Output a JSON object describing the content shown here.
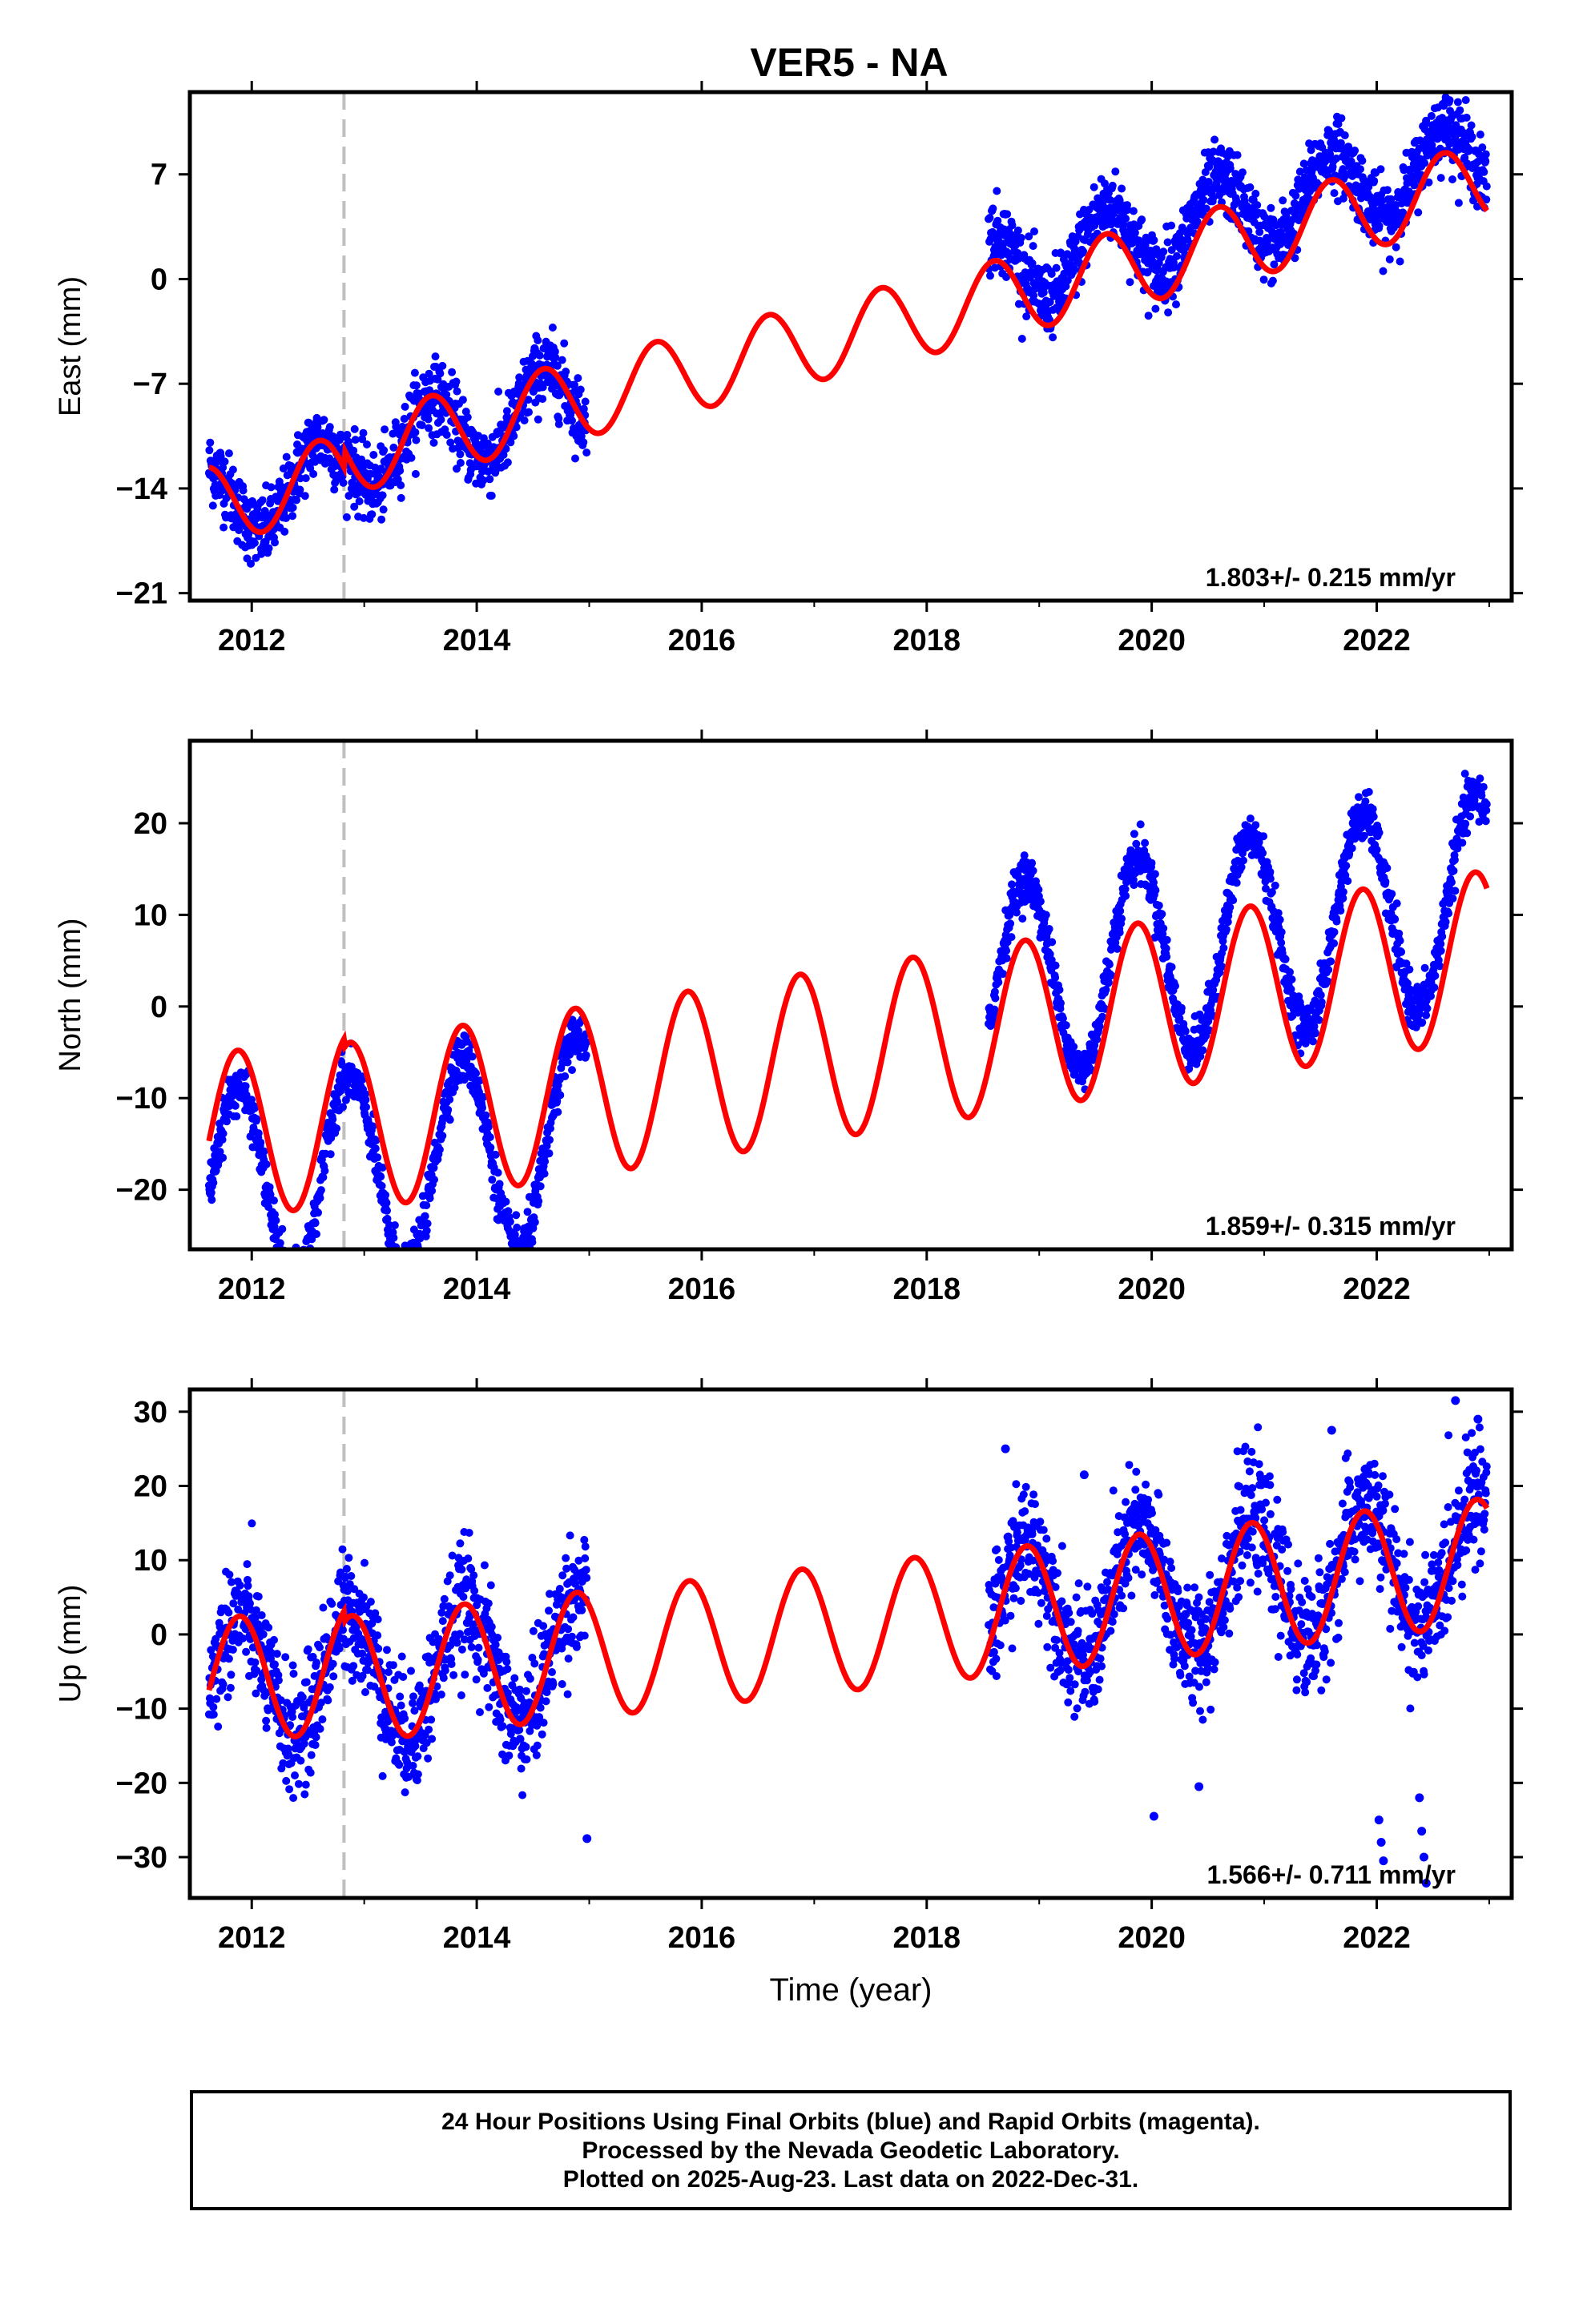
{
  "title": "VER5 - NA",
  "colors": {
    "final_orbits": "#0000ff",
    "rapid_orbits": "#ff00ff",
    "model": "#ff0000",
    "step_line": "#c0c0c0"
  },
  "chart_data": [
    {
      "type": "scatter",
      "panel": "east",
      "ylabel": "East (mm)",
      "xlabel": "",
      "xlim": [
        2011.45,
        2023.2
      ],
      "ylim": [
        -21.5,
        12.5
      ],
      "xticks": [
        2012,
        2014,
        2016,
        2018,
        2020,
        2022
      ],
      "yticks": [
        -21,
        -14,
        -7,
        0,
        7
      ],
      "equipment_change_x": 2012.82,
      "rate_label": "1.803+/- 0.215 mm/yr",
      "model": {
        "velocity": 1.803,
        "offset": -15.2,
        "annual_amplitude": 2.6,
        "phase": 1.6,
        "step_at": 2012.82,
        "step": 1.2
      },
      "observations": {
        "segments": [
          [
            2011.62,
            2014.98
          ],
          [
            2018.55,
            2022.98
          ]
        ],
        "scatter_mm": 1.2,
        "segment_offsets": [
          0.0,
          1.8
        ],
        "note_points": []
      }
    },
    {
      "type": "scatter",
      "panel": "north",
      "ylabel": "North (mm)",
      "xlabel": "",
      "xlim": [
        2011.45,
        2023.2
      ],
      "ylim": [
        -26.5,
        29
      ],
      "xticks": [
        2012,
        2014,
        2016,
        2018,
        2020,
        2022
      ],
      "yticks": [
        -20,
        -10,
        0,
        10,
        20
      ],
      "equipment_change_x": 2012.82,
      "rate_label": "1.859+/- 0.315 mm/yr",
      "model": {
        "velocity": 1.859,
        "offset": -14.5,
        "annual_amplitude": 9.2,
        "phase": -0.15,
        "step_at": 2012.82,
        "step": -1.0
      },
      "observations": {
        "segments": [
          [
            2011.62,
            2014.98
          ],
          [
            2018.55,
            2022.98
          ]
        ],
        "scatter_mm": 1.3,
        "segment_offsets": [
          -6.0,
          2.5
        ],
        "note_points": []
      }
    },
    {
      "type": "scatter",
      "panel": "up",
      "ylabel": "Up (mm)",
      "xlabel": "Time (year)",
      "xlim": [
        2011.45,
        2023.2
      ],
      "ylim": [
        -35.5,
        33
      ],
      "xticks": [
        2012,
        2014,
        2016,
        2018,
        2020,
        2022
      ],
      "yticks": [
        -30,
        -20,
        -10,
        0,
        10,
        20,
        30
      ],
      "equipment_change_x": 2012.82,
      "rate_label": "1.566+/- 0.711 mm/yr",
      "model": {
        "velocity": 1.566,
        "offset": -6.5,
        "annual_amplitude": 8.5,
        "phase": -0.25,
        "step_at": 2012.82,
        "step": -1.5
      },
      "observations": {
        "segments": [
          [
            2011.62,
            2014.98
          ],
          [
            2018.55,
            2022.98
          ]
        ],
        "scatter_mm": 4.0,
        "segment_offsets": [
          0.0,
          0.5
        ],
        "note_points": [
          [
            2014.98,
            -27.5
          ],
          [
            2020.02,
            -24.5
          ],
          [
            2020.42,
            -20.5
          ],
          [
            2022.02,
            -25.0
          ],
          [
            2022.04,
            -28.0
          ],
          [
            2022.06,
            -30.5
          ],
          [
            2022.38,
            -22.0
          ],
          [
            2022.4,
            -26.5
          ],
          [
            2022.42,
            -30.0
          ],
          [
            2022.44,
            -33.5
          ],
          [
            2021.6,
            27.5
          ],
          [
            2022.7,
            31.5
          ],
          [
            2022.9,
            29.0
          ],
          [
            2018.7,
            25.0
          ],
          [
            2019.4,
            21.5
          ]
        ]
      }
    }
  ],
  "footer": {
    "line1": "24 Hour Positions Using Final Orbits (blue) and Rapid Orbits (magenta).",
    "line2": "Processed by the Nevada Geodetic Laboratory.",
    "line3": "Plotted on 2025-Aug-23. Last data on 2022-Dec-31."
  }
}
